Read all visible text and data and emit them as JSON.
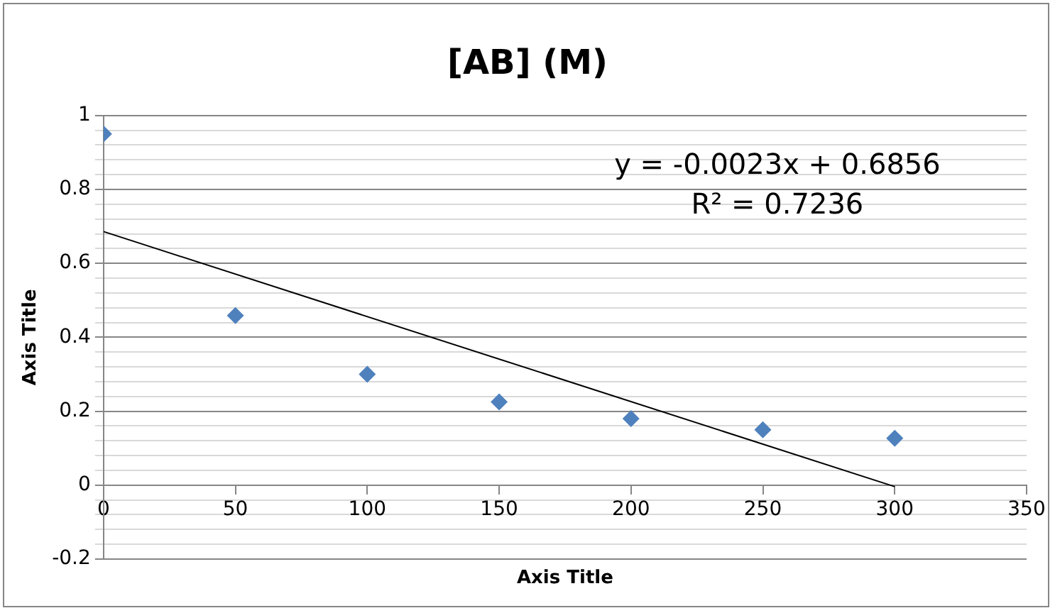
{
  "chart_data": {
    "type": "scatter",
    "title": "[AB] (M)",
    "xlabel": "Axis Title",
    "ylabel": "Axis Title",
    "x": [
      0,
      50,
      100,
      150,
      200,
      250,
      300
    ],
    "series": [
      {
        "color": "#4f81bd",
        "values": [
          0.95,
          0.459,
          0.3,
          0.225,
          0.18,
          0.15,
          0.127
        ],
        "marker": "diamond"
      },
      {
        "type": "line",
        "color": "#000000",
        "x": [
          0,
          300
        ],
        "values": [
          0.686,
          -0.004
        ],
        "marker": "none"
      }
    ],
    "xlim": [
      0,
      350
    ],
    "xticks": [
      0,
      50,
      100,
      150,
      200,
      250,
      300,
      350
    ],
    "ylim": [
      -0.2,
      1
    ],
    "yticks": [
      -0.2,
      {
        "value": -0.16,
        "label": null
      },
      {
        "value": -0.12,
        "label": null
      },
      {
        "value": -0.08,
        "label": null
      },
      {
        "value": -0.04,
        "label": null
      },
      0,
      {
        "value": 0.04,
        "label": null
      },
      {
        "value": 0.08,
        "label": null
      },
      {
        "value": 0.12,
        "label": null
      },
      {
        "value": 0.16,
        "label": null
      },
      0.2,
      {
        "value": 0.24,
        "label": null
      },
      {
        "value": 0.28,
        "label": null
      },
      {
        "value": 0.32,
        "label": null
      },
      {
        "value": 0.36,
        "label": null
      },
      0.4,
      {
        "value": 0.44,
        "label": null
      },
      {
        "value": 0.48,
        "label": null
      },
      {
        "value": 0.52,
        "label": null
      },
      {
        "value": 0.56,
        "label": null
      },
      0.6,
      {
        "value": 0.64,
        "label": null
      },
      {
        "value": 0.68,
        "label": null
      },
      {
        "value": 0.72,
        "label": null
      },
      {
        "value": 0.76,
        "label": null
      },
      0.8,
      {
        "value": 0.84,
        "label": null
      },
      {
        "value": 0.88,
        "label": null
      },
      {
        "value": 0.92,
        "label": null
      },
      {
        "value": 0.96,
        "label": null
      },
      1
    ],
    "grid": "y",
    "legend": false,
    "annotations": [
      "y = -0.0023x + 0.6856",
      "R² = 0.7236"
    ]
  }
}
